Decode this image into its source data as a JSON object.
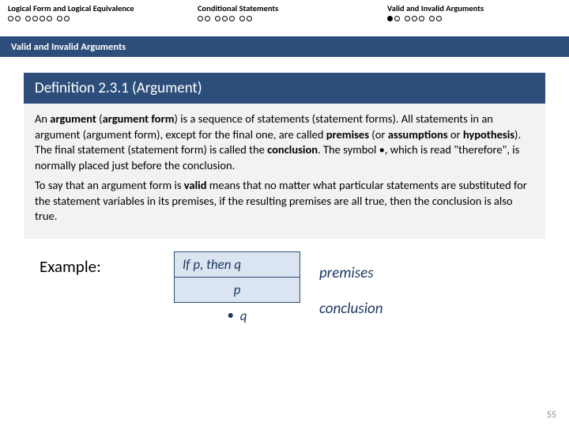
{
  "nav": {
    "sections": [
      {
        "title": "Logical Form and Logical Equivalence",
        "dot_pattern": [
          [
            0,
            0
          ],
          [
            0,
            0,
            0,
            0
          ],
          [
            0,
            0
          ]
        ],
        "current": -1
      },
      {
        "title": "Conditional Statements",
        "dot_pattern": [
          [
            0,
            0
          ],
          [
            0,
            0,
            0
          ],
          [
            0,
            0
          ]
        ],
        "current": -1
      },
      {
        "title": "Valid and Invalid Arguments",
        "dot_pattern": [
          [
            1,
            0
          ],
          [
            0,
            0,
            0
          ],
          [
            0,
            0
          ]
        ],
        "current": 0
      }
    ]
  },
  "section_band": "Valid and Invalid Arguments",
  "definition": {
    "header": "Definition 2.3.1 (Argument)",
    "para1_html": "An <b>argument</b> (<b>argument form</b>) is a sequence of statements (statement forms). All statements in an argument (argument form), except for the final one, are called <b>premises</b> (or <b>assumptions</b> or <b>hypothesis</b>). The final statement (statement form) is called the <b>conclusion</b>. The symbol •, which is read \"therefore\", is normally placed just before the conclusion.",
    "para2_html": "To say that an argument form is <b>valid</b> means that no matter what particular statements are substituted for the statement variables in its premises, if the resulting premises are all true, then the conclusion is also true."
  },
  "example": {
    "label": "Example:",
    "premise1": "If p, then q",
    "premise2": "p",
    "conclusion_symbol": "•",
    "conclusion_var": "q",
    "label_premises": "premises",
    "label_conclusion": "conclusion"
  },
  "page_number": "55",
  "colors": {
    "band": "#2d4e7a",
    "box_fill": "#dbe5f1",
    "box_border": "#2d4e7a",
    "text_accent": "#1f3864",
    "body_grey": "#f2f2f2"
  }
}
